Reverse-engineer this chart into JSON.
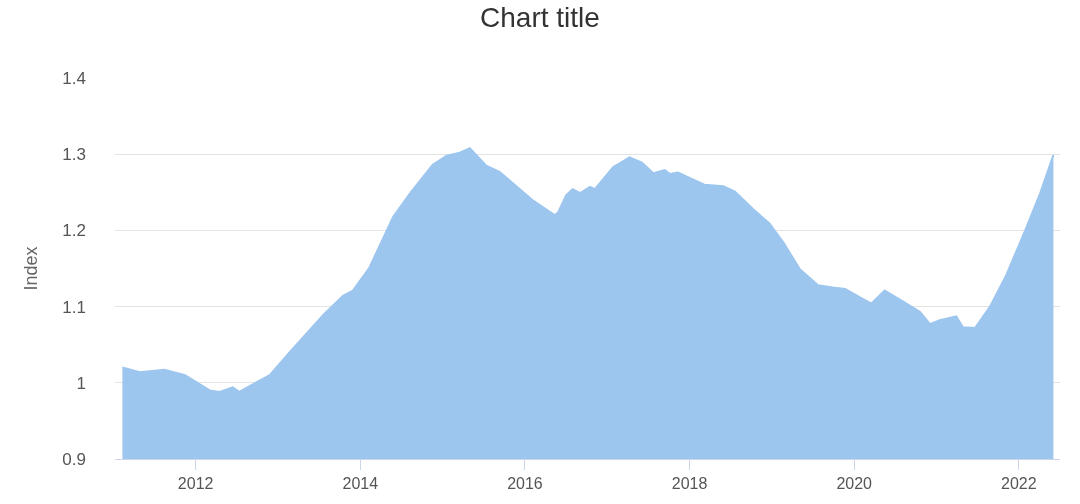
{
  "chart_data": {
    "type": "area",
    "title": "Chart title",
    "ylabel": "Index",
    "xlim": [
      2011.02,
      2022.5
    ],
    "xticks": [
      2012,
      2014,
      2016,
      2018,
      2020,
      2022
    ],
    "ylim": [
      0.9,
      1.4
    ],
    "yticks": [
      0.9,
      1,
      1.1,
      1.2,
      1.3,
      1.4
    ],
    "grid": "y",
    "x": [
      2011.11,
      2011.32,
      2011.62,
      2011.87,
      2012.17,
      2012.29,
      2012.45,
      2012.53,
      2012.66,
      2012.9,
      2013.14,
      2013.55,
      2013.79,
      2013.91,
      2014.11,
      2014.4,
      2014.62,
      2014.88,
      2015.05,
      2015.21,
      2015.33,
      2015.53,
      2015.69,
      2016.1,
      2016.36,
      2016.4,
      2016.5,
      2016.58,
      2016.67,
      2016.79,
      2016.85,
      2017.07,
      2017.27,
      2017.42,
      2017.56,
      2017.7,
      2017.76,
      2017.86,
      2018.0,
      2018.18,
      2018.41,
      2018.55,
      2018.77,
      2018.97,
      2019.14,
      2019.34,
      2019.56,
      2019.74,
      2019.89,
      2020.07,
      2020.21,
      2020.37,
      2020.59,
      2020.8,
      2020.92,
      2021.04,
      2021.24,
      2021.32,
      2021.47,
      2021.65,
      2021.85,
      2022.07,
      2022.26,
      2022.42
    ],
    "series": [
      {
        "color": "#9dc6ef",
        "values": [
          1.02,
          1.014,
          1.017,
          1.01,
          0.99,
          0.988,
          0.994,
          0.988,
          0.996,
          1.01,
          1.04,
          1.089,
          1.114,
          1.121,
          1.151,
          1.218,
          1.251,
          1.286,
          1.298,
          1.302,
          1.308,
          1.285,
          1.277,
          1.239,
          1.22,
          1.223,
          1.246,
          1.254,
          1.249,
          1.257,
          1.254,
          1.283,
          1.296,
          1.289,
          1.275,
          1.279,
          1.274,
          1.276,
          1.269,
          1.26,
          1.258,
          1.251,
          1.228,
          1.209,
          1.184,
          1.149,
          1.128,
          1.125,
          1.123,
          1.112,
          1.104,
          1.121,
          1.107,
          1.093,
          1.077,
          1.082,
          1.087,
          1.073,
          1.072,
          1.1,
          1.142,
          1.198,
          1.249,
          1.299
        ]
      }
    ]
  }
}
